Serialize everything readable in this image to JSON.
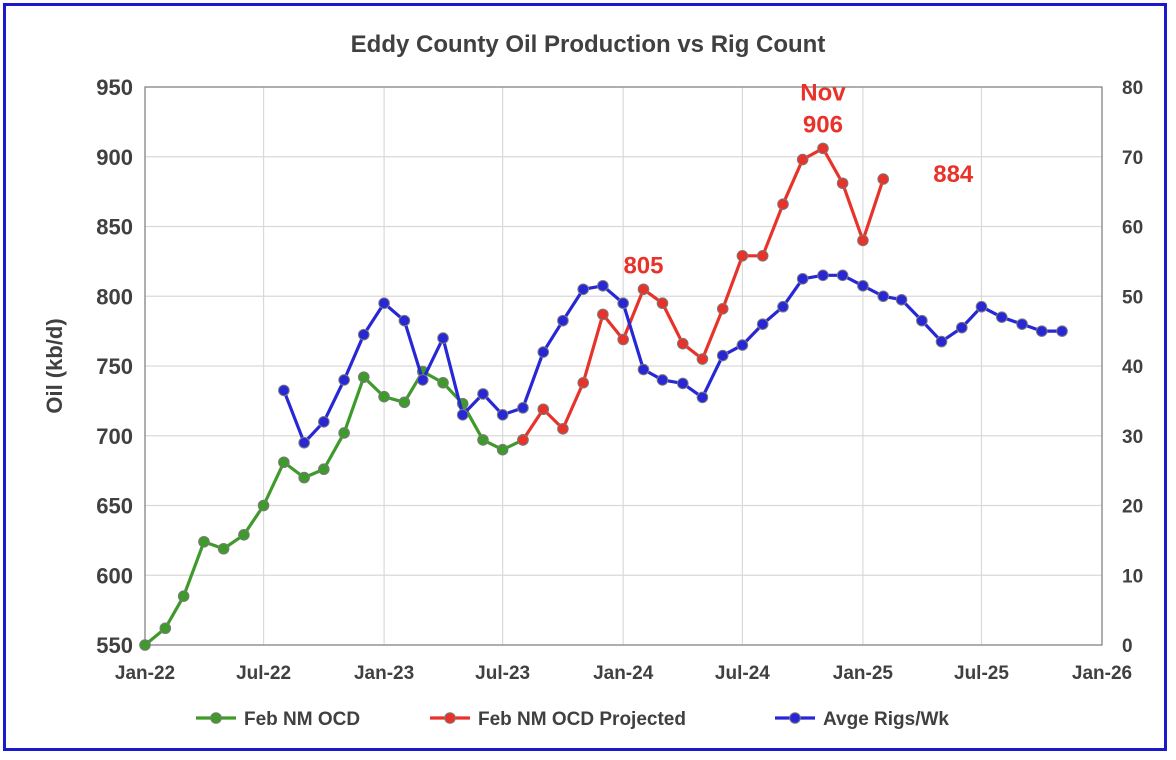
{
  "chart_data": {
    "type": "line",
    "title": "Eddy County Oil Production vs Rig Count",
    "ylabel": "Oil (kb/d)",
    "y2label": "",
    "ylim": [
      550,
      950
    ],
    "y2lim": [
      0,
      80
    ],
    "yticks": [
      "550",
      "600",
      "650",
      "700",
      "750",
      "800",
      "850",
      "900",
      "950"
    ],
    "y2ticks": [
      "0",
      "10",
      "20",
      "30",
      "40",
      "50",
      "60",
      "70",
      "80"
    ],
    "xticks": [
      {
        "label": "Jan-22",
        "date": "2022-01-01"
      },
      {
        "label": "Jul-22",
        "date": "2022-07-01"
      },
      {
        "label": "Jan-23",
        "date": "2023-01-01"
      },
      {
        "label": "Jul-23",
        "date": "2023-07-01"
      },
      {
        "label": "Jan-24",
        "date": "2024-01-01"
      },
      {
        "label": "Jul-24",
        "date": "2024-07-01"
      },
      {
        "label": "Jan-25",
        "date": "2025-01-01"
      },
      {
        "label": "Jul-25",
        "date": "2025-07-01"
      },
      {
        "label": "Jan-26",
        "date": "2026-01-01"
      }
    ],
    "xlim": [
      "2022-01-01",
      "2026-01-01"
    ],
    "grid": true,
    "legend_position": "bottom",
    "series": [
      {
        "name": "Feb  NM OCD",
        "axis": "left",
        "color": "#3f9a2c",
        "points": [
          [
            "2022-01-01",
            548
          ],
          [
            "2022-02-01",
            562
          ],
          [
            "2022-03-01",
            585
          ],
          [
            "2022-04-01",
            624
          ],
          [
            "2022-05-01",
            619
          ],
          [
            "2022-06-01",
            629
          ],
          [
            "2022-07-01",
            650
          ],
          [
            "2022-08-01",
            681
          ],
          [
            "2022-09-01",
            670
          ],
          [
            "2022-10-01",
            676
          ],
          [
            "2022-11-01",
            702
          ],
          [
            "2022-12-01",
            742
          ],
          [
            "2023-01-01",
            728
          ],
          [
            "2023-02-01",
            724
          ],
          [
            "2023-03-01",
            746
          ],
          [
            "2023-04-01",
            738
          ],
          [
            "2023-05-01",
            723
          ],
          [
            "2023-06-01",
            697
          ],
          [
            "2023-07-01",
            690
          ],
          [
            "2023-08-01",
            697
          ]
        ]
      },
      {
        "name": "Feb NM OCD Projected",
        "axis": "left",
        "color": "#e8332a",
        "points": [
          [
            "2023-08-01",
            697
          ],
          [
            "2023-09-01",
            719
          ],
          [
            "2023-10-01",
            705
          ],
          [
            "2023-11-01",
            738
          ],
          [
            "2023-12-01",
            787
          ],
          [
            "2024-01-01",
            769
          ],
          [
            "2024-02-01",
            805
          ],
          [
            "2024-03-01",
            795
          ],
          [
            "2024-04-01",
            766
          ],
          [
            "2024-05-01",
            755
          ],
          [
            "2024-06-01",
            791
          ],
          [
            "2024-07-01",
            829
          ],
          [
            "2024-08-01",
            829
          ],
          [
            "2024-09-01",
            866
          ],
          [
            "2024-10-01",
            898
          ],
          [
            "2024-11-01",
            906
          ],
          [
            "2024-12-01",
            881
          ],
          [
            "2025-01-01",
            840
          ],
          [
            "2025-02-01",
            884
          ]
        ]
      },
      {
        "name": "Avge Rigs/Wk",
        "axis": "right",
        "color": "#2727d6",
        "points": [
          [
            "2022-08-01",
            36.5
          ],
          [
            "2022-09-01",
            29.0
          ],
          [
            "2022-10-01",
            32.0
          ],
          [
            "2022-11-01",
            38.0
          ],
          [
            "2022-12-01",
            44.5
          ],
          [
            "2023-01-01",
            49.0
          ],
          [
            "2023-02-01",
            46.5
          ],
          [
            "2023-03-01",
            38.0
          ],
          [
            "2023-04-01",
            44.0
          ],
          [
            "2023-05-01",
            33.0
          ],
          [
            "2023-06-01",
            36.0
          ],
          [
            "2023-07-01",
            33.0
          ],
          [
            "2023-08-01",
            34.0
          ],
          [
            "2023-09-01",
            42.0
          ],
          [
            "2023-10-01",
            46.5
          ],
          [
            "2023-11-01",
            51.0
          ],
          [
            "2023-12-01",
            51.5
          ],
          [
            "2024-01-01",
            49.0
          ],
          [
            "2024-02-01",
            39.5
          ],
          [
            "2024-03-01",
            38.0
          ],
          [
            "2024-04-01",
            37.5
          ],
          [
            "2024-05-01",
            35.5
          ],
          [
            "2024-06-01",
            41.5
          ],
          [
            "2024-07-01",
            43.0
          ],
          [
            "2024-08-01",
            46.0
          ],
          [
            "2024-09-01",
            48.5
          ],
          [
            "2024-10-01",
            52.5
          ],
          [
            "2024-11-01",
            53.0
          ],
          [
            "2024-12-01",
            53.0
          ],
          [
            "2025-01-01",
            51.5
          ],
          [
            "2025-02-01",
            50.0
          ],
          [
            "2025-03-01",
            49.5
          ],
          [
            "2025-04-01",
            46.5
          ],
          [
            "2025-05-01",
            43.5
          ],
          [
            "2025-06-01",
            45.5
          ],
          [
            "2025-07-01",
            48.5
          ],
          [
            "2025-08-01",
            47.0
          ],
          [
            "2025-09-01",
            46.0
          ],
          [
            "2025-10-01",
            45.0
          ],
          [
            "2025-11-01",
            45.0
          ]
        ]
      }
    ],
    "annotations": [
      {
        "text": "Nov",
        "date": "2024-11-01",
        "value": 906,
        "place": "above2"
      },
      {
        "text": "906",
        "date": "2024-11-01",
        "value": 906,
        "place": "above1"
      },
      {
        "text": "805",
        "date": "2024-02-01",
        "value": 805,
        "place": "above1"
      },
      {
        "text": "884",
        "date": "2025-02-01",
        "value": 884,
        "place": "right"
      }
    ]
  }
}
